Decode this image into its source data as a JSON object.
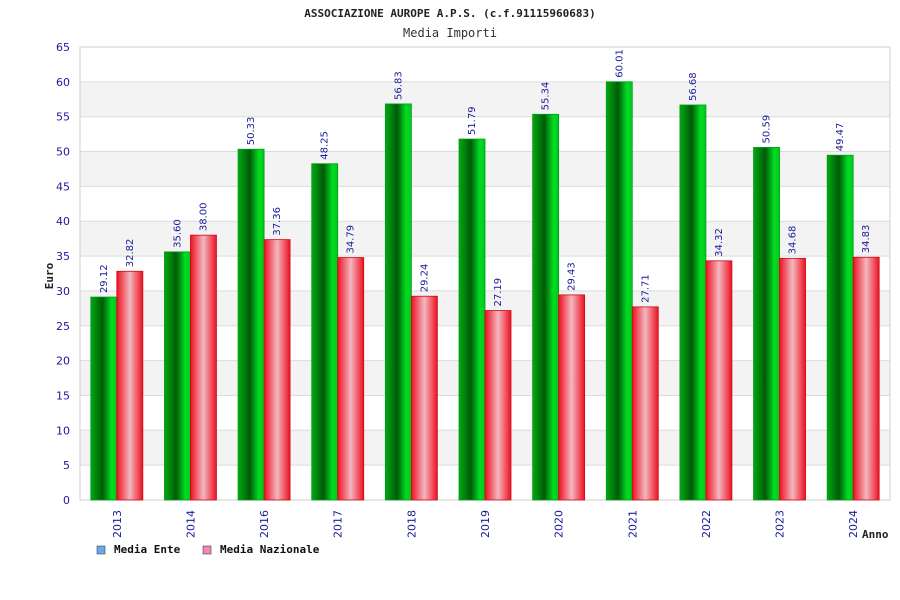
{
  "chart_data": {
    "type": "bar",
    "title": "ASSOCIAZIONE AUROPE A.P.S. (c.f.91115960683)",
    "subtitle": "Media Importi",
    "xlabel": "Anno",
    "ylabel": "Euro",
    "ylim": [
      0,
      65
    ],
    "yticks": [
      0,
      5,
      10,
      15,
      20,
      25,
      30,
      35,
      40,
      45,
      50,
      55,
      60,
      65
    ],
    "grid": true,
    "legend_position": "bottom-left",
    "categories": [
      "2013",
      "2014",
      "2016",
      "2017",
      "2018",
      "2019",
      "2020",
      "2021",
      "2022",
      "2023",
      "2024"
    ],
    "series": [
      {
        "name": "Media Ente",
        "color": "#00cc22",
        "legend_color": "#66aaee",
        "values": [
          29.12,
          35.6,
          50.33,
          48.25,
          56.83,
          51.79,
          55.34,
          60.01,
          56.68,
          50.59,
          49.47
        ],
        "labels": [
          "29.12",
          "35.60",
          "50.33",
          "48.25",
          "56.83",
          "51.79",
          "55.34",
          "60.01",
          "56.68",
          "50.59",
          "49.47"
        ]
      },
      {
        "name": "Media Nazionale",
        "color": "#ee1122",
        "legend_color": "#ee88bb",
        "values": [
          32.82,
          38.0,
          37.36,
          34.79,
          29.24,
          27.19,
          29.43,
          27.71,
          34.32,
          34.68,
          34.83
        ],
        "labels": [
          "32.82",
          "38.00",
          "37.36",
          "34.79",
          "29.24",
          "27.19",
          "29.43",
          "27.71",
          "34.32",
          "34.68",
          "34.83"
        ]
      }
    ]
  }
}
